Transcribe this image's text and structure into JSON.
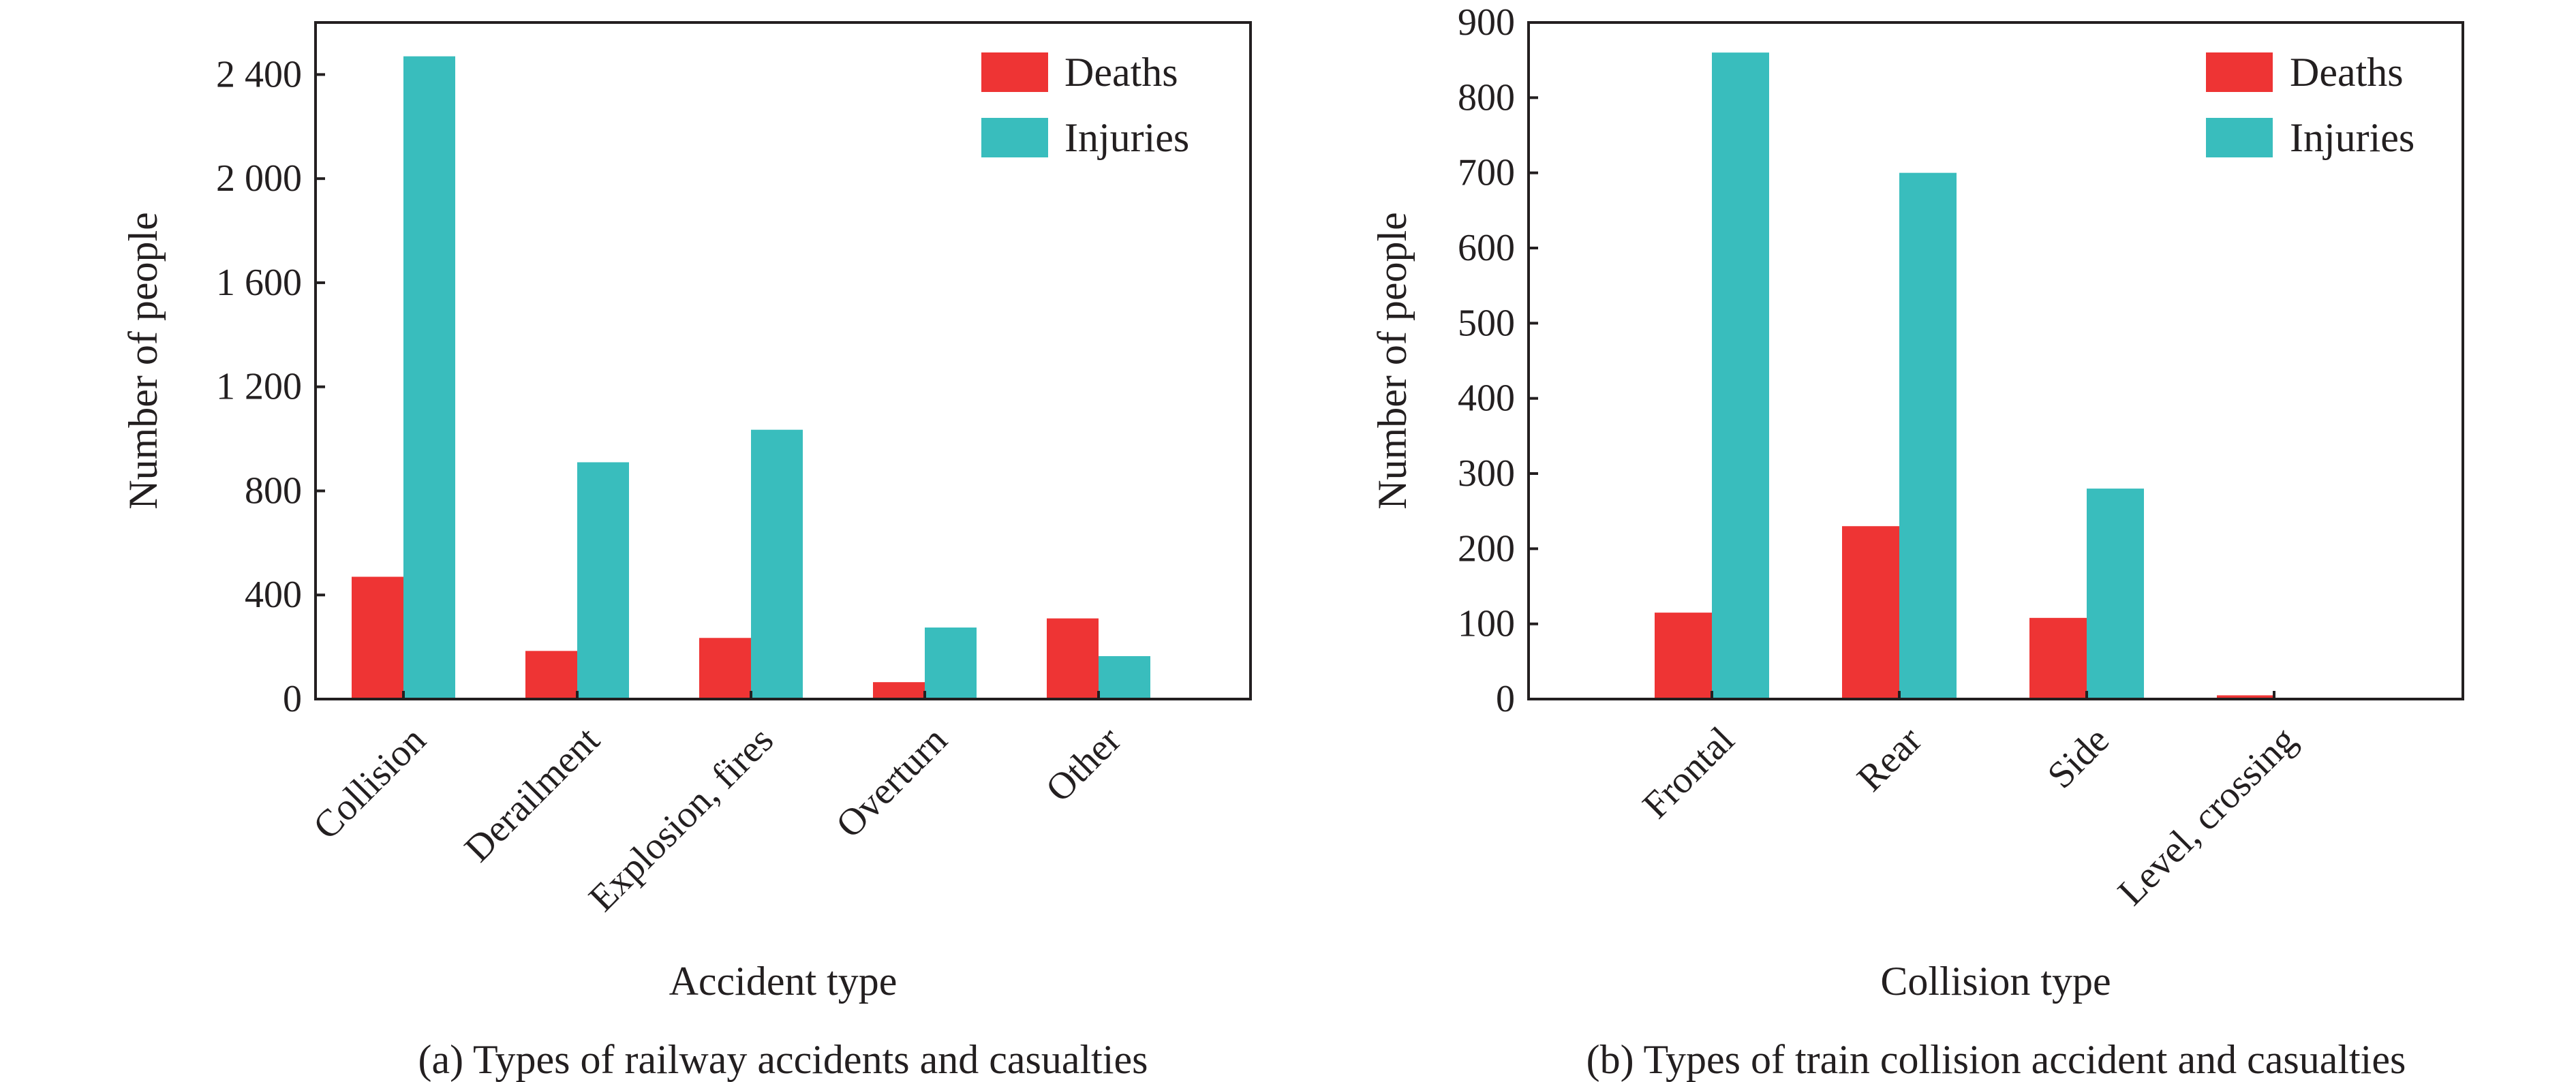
{
  "chart_data": [
    {
      "type": "bar",
      "caption": "(a) Types of railway accidents and casualties",
      "xlabel": "Accident type",
      "ylabel": "Number of people",
      "categories": [
        "Collision",
        "Derailment",
        "Explosion, fires",
        "Overturn",
        "Other"
      ],
      "series": [
        {
          "name": "Deaths",
          "values": [
            470,
            185,
            235,
            65,
            310
          ]
        },
        {
          "name": "Injuries",
          "values": [
            2470,
            910,
            1035,
            275,
            165
          ]
        }
      ],
      "ylim": [
        0,
        2600
      ],
      "yticks": [
        0,
        400,
        800,
        1200,
        1600,
        2000,
        2400
      ],
      "ytick_labels": [
        "0",
        "400",
        "800",
        "1 200",
        "1 600",
        "2 000",
        "2 400"
      ],
      "legend_position": "top-right",
      "grid": false
    },
    {
      "type": "bar",
      "caption": "(b) Types of train collision accident and casualties",
      "xlabel": "Collision type",
      "ylabel": "Number of people",
      "categories": [
        "Frontal",
        "Rear",
        "Side",
        "Level, crossing"
      ],
      "series": [
        {
          "name": "Deaths",
          "values": [
            115,
            230,
            108,
            5
          ]
        },
        {
          "name": "Injuries",
          "values": [
            860,
            700,
            280,
            0
          ]
        }
      ],
      "ylim": [
        0,
        900
      ],
      "yticks": [
        0,
        100,
        200,
        300,
        400,
        500,
        600,
        700,
        800,
        900
      ],
      "ytick_labels": [
        "0",
        "100",
        "200",
        "300",
        "400",
        "500",
        "600",
        "700",
        "800",
        "900"
      ],
      "legend_position": "top-right",
      "grid": false
    }
  ],
  "colors": {
    "deaths": "#ee3434",
    "injuries": "#39bdbd",
    "axis": "#231f20"
  }
}
